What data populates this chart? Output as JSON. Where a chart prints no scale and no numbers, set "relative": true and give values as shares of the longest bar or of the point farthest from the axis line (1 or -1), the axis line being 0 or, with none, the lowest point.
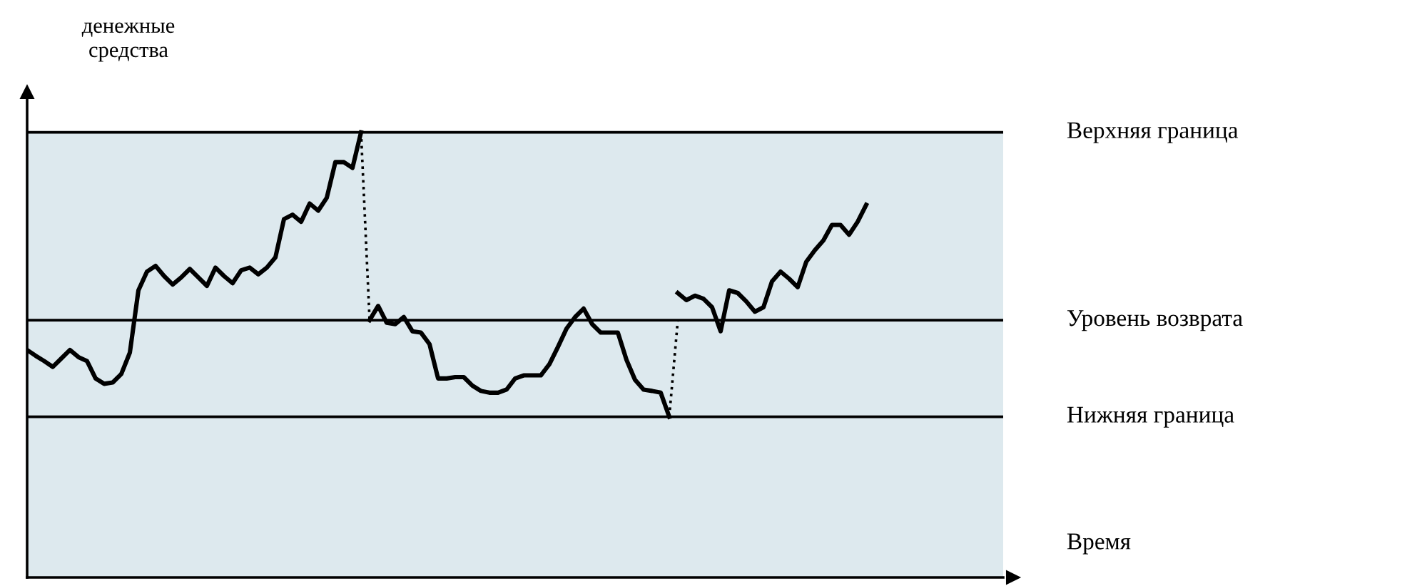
{
  "chart_data": {
    "type": "line",
    "relative": true,
    "ylabel": "денежные\nсредства",
    "xlabel": "Время",
    "marker": "none",
    "categories": [
      null,
      null,
      null,
      null,
      null,
      null,
      null,
      null,
      null,
      null,
      null,
      null,
      null,
      null,
      null,
      null,
      null,
      null,
      null,
      null,
      null,
      null,
      null,
      null,
      null,
      null,
      null,
      null,
      null,
      null,
      null,
      null,
      null,
      null,
      null,
      null,
      null,
      null,
      null,
      null,
      null,
      null,
      null,
      null,
      null,
      null,
      null,
      null,
      null,
      null,
      null,
      null,
      null,
      null,
      null,
      null,
      null,
      null,
      null,
      null,
      null,
      null,
      null,
      null,
      null,
      null,
      null,
      null,
      null,
      null,
      null,
      null,
      null,
      null,
      null,
      null,
      null,
      null,
      null,
      null,
      null,
      null,
      null,
      null,
      null,
      null,
      null,
      null,
      null,
      null,
      null,
      null,
      null,
      null,
      null,
      null,
      null,
      null,
      null,
      null,
      null,
      null,
      null,
      null,
      null,
      null,
      null,
      null,
      null,
      null,
      null,
      null,
      null,
      null,
      null
    ],
    "series": [
      {
        "color": "#000000",
        "line_style": "solid",
        "values": [
          0.511,
          0.498,
          0.486,
          0.473,
          0.492,
          0.511,
          0.495,
          0.486,
          0.447,
          0.435,
          0.438,
          0.457,
          0.505,
          0.645,
          0.687,
          0.7,
          0.677,
          0.658,
          0.674,
          0.693,
          0.674,
          0.655,
          0.696,
          0.677,
          0.661,
          0.69,
          0.696,
          0.681,
          0.696,
          0.719,
          0.805,
          0.815,
          0.799,
          0.84,
          0.824,
          0.853,
          0.933,
          0.933,
          0.92,
          1.0,
          null,
          null,
          null,
          null,
          null,
          null,
          null,
          null,
          null,
          null,
          null,
          null,
          null,
          null,
          null,
          null,
          null,
          null,
          null,
          null,
          null,
          null,
          null,
          null,
          null,
          null,
          null,
          null,
          null,
          null,
          null,
          null,
          null,
          null,
          null,
          null,
          null,
          null,
          null,
          null,
          null,
          null,
          null,
          null,
          null,
          null,
          null,
          null,
          null,
          null,
          null,
          null,
          null,
          null,
          null,
          null,
          null,
          null,
          null,
          null,
          null,
          null,
          null,
          null,
          null,
          null,
          null,
          null,
          null,
          null,
          null,
          null,
          null,
          null,
          null
        ]
      },
      {
        "color": "#000000",
        "line_style": "solid",
        "values": [
          null,
          null,
          null,
          null,
          null,
          null,
          null,
          null,
          null,
          null,
          null,
          null,
          null,
          null,
          null,
          null,
          null,
          null,
          null,
          null,
          null,
          null,
          null,
          null,
          null,
          null,
          null,
          null,
          null,
          null,
          null,
          null,
          null,
          null,
          null,
          null,
          null,
          null,
          null,
          null,
          0.578,
          0.61,
          0.572,
          0.569,
          0.585,
          0.553,
          0.55,
          0.524,
          0.447,
          0.447,
          0.45,
          0.45,
          0.431,
          0.419,
          0.415,
          0.415,
          0.422,
          0.447,
          0.454,
          0.454,
          0.454,
          0.479,
          0.518,
          0.559,
          0.585,
          0.604,
          0.569,
          0.55,
          0.55,
          0.55,
          0.489,
          0.444,
          0.422,
          0.419,
          0.415,
          0.361,
          null,
          null,
          null,
          null,
          null,
          null,
          null,
          null,
          null,
          null,
          null,
          null,
          null,
          null,
          null,
          null,
          null,
          null,
          null,
          null,
          null,
          null,
          null,
          null,
          null,
          null,
          null,
          null,
          null,
          null,
          null,
          null,
          null,
          null,
          null,
          null,
          null,
          null,
          null
        ]
      },
      {
        "color": "#000000",
        "line_style": "solid",
        "values": [
          null,
          null,
          null,
          null,
          null,
          null,
          null,
          null,
          null,
          null,
          null,
          null,
          null,
          null,
          null,
          null,
          null,
          null,
          null,
          null,
          null,
          null,
          null,
          null,
          null,
          null,
          null,
          null,
          null,
          null,
          null,
          null,
          null,
          null,
          null,
          null,
          null,
          null,
          null,
          null,
          null,
          null,
          null,
          null,
          null,
          null,
          null,
          null,
          null,
          null,
          null,
          null,
          null,
          null,
          null,
          null,
          null,
          null,
          null,
          null,
          null,
          null,
          null,
          null,
          null,
          null,
          null,
          null,
          null,
          null,
          null,
          null,
          null,
          null,
          null,
          null,
          0.639,
          0.623,
          0.633,
          0.626,
          0.607,
          0.553,
          0.645,
          0.639,
          0.62,
          0.597,
          0.607,
          0.665,
          0.687,
          0.671,
          0.652,
          0.709,
          0.735,
          0.757,
          0.792,
          0.792,
          0.77,
          0.799,
          0.837,
          null,
          null,
          null,
          null,
          null,
          null,
          null,
          null,
          null,
          null,
          null,
          null,
          null,
          null,
          null,
          null
        ]
      },
      {
        "color": "#000000",
        "line_style": "dotted",
        "values": [
          null,
          null,
          null,
          null,
          null,
          null,
          null,
          null,
          null,
          null,
          null,
          null,
          null,
          null,
          null,
          null,
          null,
          null,
          null,
          null,
          null,
          null,
          null,
          null,
          null,
          null,
          null,
          null,
          null,
          null,
          null,
          null,
          null,
          null,
          null,
          null,
          null,
          null,
          null,
          1.0,
          0.578,
          null,
          null,
          null,
          null,
          null,
          null,
          null,
          null,
          null,
          null,
          null,
          null,
          null,
          null,
          null,
          null,
          null,
          null,
          null,
          null,
          null,
          null,
          null,
          null,
          null,
          null,
          null,
          null,
          null,
          null,
          null,
          null,
          null,
          null,
          0.361,
          0.578,
          null,
          null,
          null,
          null,
          null,
          null,
          null,
          null,
          null,
          null,
          null,
          null,
          null,
          null,
          null,
          null,
          null,
          null,
          null,
          null,
          null,
          null,
          null,
          null,
          null,
          null,
          null,
          null,
          null,
          null,
          null,
          null,
          null,
          null,
          null,
          null,
          null,
          null
        ]
      }
    ],
    "bands": [
      {
        "axis": "y",
        "from": 0,
        "to": 1.0,
        "color": "#dde9ee"
      }
    ],
    "ref_lines": [
      {
        "axis": "y",
        "value": 1.0,
        "label": "Верхняя граница",
        "color": "#000000",
        "line_style": "solid"
      },
      {
        "axis": "y",
        "value": 0.578,
        "label": "Уровень возврата",
        "color": "#000000",
        "line_style": "solid"
      },
      {
        "axis": "y",
        "value": 0.361,
        "label": "Нижняя граница",
        "color": "#000000",
        "line_style": "solid"
      }
    ]
  }
}
